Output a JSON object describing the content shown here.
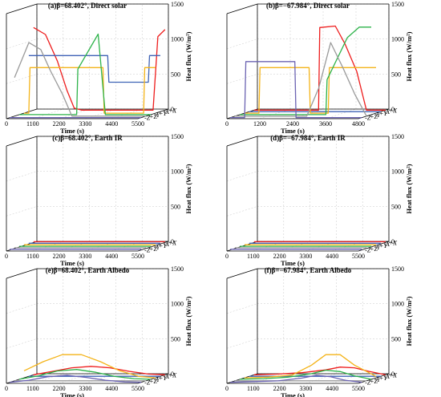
{
  "chart_data": [
    {
      "type": "line",
      "panel": "a",
      "title": "(a)β=68.402°, Direct solar",
      "xlabel": "Time (s)",
      "zlabel": "Heat flux (W/m²)",
      "xticks": [
        "0",
        "1100",
        "2200",
        "3300",
        "4400",
        "5500"
      ],
      "zticks": [
        "0",
        "500",
        "1000",
        "1500"
      ],
      "faces": [
        "+X",
        "-X",
        "+Y",
        "-Y",
        "+Z",
        "-Z"
      ],
      "xlim": [
        0,
        5500
      ],
      "zlim": [
        0,
        1500
      ],
      "series": [
        {
          "face": "+X",
          "color": "#ee1c1c",
          "x": [
            0,
            500,
            1000,
            1400,
            1700,
            2000,
            5000,
            5200,
            5500
          ],
          "y": [
            1180,
            1080,
            700,
            280,
            30,
            0,
            0,
            1050,
            1150
          ]
        },
        {
          "face": "-X",
          "color": "#3f63b6",
          "x": [
            0,
            3300,
            3350,
            5000,
            5050,
            5500
          ],
          "y": [
            800,
            800,
            420,
            420,
            800,
            800
          ]
        },
        {
          "face": "+Y",
          "color": "#f4b41a",
          "x": [
            0,
            200,
            250,
            3300,
            3350,
            5000,
            5050,
            5500
          ],
          "y": [
            0,
            0,
            650,
            650,
            0,
            0,
            650,
            650
          ]
        },
        {
          "face": "-Y",
          "color": "#2db34a",
          "x": [
            0,
            2400,
            2450,
            3300,
            3600,
            3650,
            5500
          ],
          "y": [
            0,
            0,
            650,
            1150,
            0,
            0,
            0
          ]
        },
        {
          "face": "+Z",
          "color": "#9a9a9a",
          "x": [
            0,
            600,
            1100,
            1500,
            2000,
            2400,
            5500
          ],
          "y": [
            550,
            1050,
            950,
            650,
            320,
            0,
            0
          ]
        },
        {
          "face": "-Z",
          "color": "#6b63b2",
          "x": [
            0,
            5500
          ],
          "y": [
            0,
            0
          ]
        }
      ]
    },
    {
      "type": "line",
      "panel": "b",
      "title": "(b)β=−67.984°, Direct solar",
      "xlabel": "Time (s)",
      "zlabel": "Heat flux (W/m²)",
      "xticks": [
        "0",
        "1200",
        "2400",
        "3600",
        "4800"
      ],
      "zticks": [
        "0",
        "500",
        "1000",
        "1500"
      ],
      "faces": [
        "+X",
        "-X",
        "+Y",
        "-Y",
        "+Z",
        "-Z"
      ],
      "xlim": [
        0,
        5500
      ],
      "zlim": [
        0,
        1500
      ],
      "series": [
        {
          "face": "+X",
          "color": "#ee1c1c",
          "x": [
            0,
            2700,
            2750,
            3400,
            3800,
            4300,
            4700,
            5500
          ],
          "y": [
            0,
            0,
            1180,
            1200,
            950,
            550,
            0,
            0
          ]
        },
        {
          "face": "-X",
          "color": "#3f63b6",
          "x": [
            0,
            5500
          ],
          "y": [
            0,
            0
          ]
        },
        {
          "face": "+Y",
          "color": "#f4b41a",
          "x": [
            0,
            600,
            650,
            2700,
            2750,
            3500,
            3550,
            5500
          ],
          "y": [
            0,
            0,
            650,
            650,
            0,
            0,
            650,
            650
          ]
        },
        {
          "face": "-Y",
          "color": "#2db34a",
          "x": [
            0,
            3600,
            3650,
            4500,
            5000,
            5500
          ],
          "y": [
            0,
            0,
            500,
            1100,
            1250,
            1250
          ]
        },
        {
          "face": "+Z",
          "color": "#9a9a9a",
          "x": [
            0,
            3000,
            3500,
            4000,
            4500,
            5000,
            5500
          ],
          "y": [
            0,
            0,
            400,
            1050,
            700,
            320,
            0
          ]
        },
        {
          "face": "-Z",
          "color": "#6b63b2",
          "x": [
            0,
            600,
            650,
            2700,
            2750,
            5500
          ],
          "y": [
            0,
            0,
            800,
            800,
            0,
            0
          ]
        }
      ]
    },
    {
      "type": "line",
      "panel": "c",
      "title": "(c)β=68.402°, Earth IR",
      "xlabel": "Time (s)",
      "zlabel": "Heat flux (W/m²)",
      "xticks": [
        "0",
        "1100",
        "2200",
        "3300",
        "4400",
        "5500"
      ],
      "zticks": [
        "0",
        "500",
        "1000",
        "1500"
      ],
      "faces": [
        "+X",
        "-X",
        "+Y",
        "-Y",
        "+Z",
        "-Z"
      ],
      "xlim": [
        0,
        5500
      ],
      "zlim": [
        0,
        1500
      ],
      "series": [
        {
          "face": "+X",
          "color": "#ee1c1c",
          "x": [
            0,
            5500
          ],
          "y": [
            10,
            10
          ]
        },
        {
          "face": "-X",
          "color": "#3f63b6",
          "x": [
            0,
            5500
          ],
          "y": [
            10,
            10
          ]
        },
        {
          "face": "+Y",
          "color": "#f4b41a",
          "x": [
            0,
            5500
          ],
          "y": [
            10,
            10
          ]
        },
        {
          "face": "-Y",
          "color": "#2db34a",
          "x": [
            0,
            5500
          ],
          "y": [
            10,
            10
          ]
        },
        {
          "face": "+Z",
          "color": "#9a9a9a",
          "x": [
            0,
            5500
          ],
          "y": [
            10,
            10
          ]
        },
        {
          "face": "-Z",
          "color": "#6b63b2",
          "x": [
            0,
            5500
          ],
          "y": [
            10,
            10
          ]
        }
      ]
    },
    {
      "type": "line",
      "panel": "d",
      "title": "(d)β=−67.984°, Earth IR",
      "xlabel": "Time (s)",
      "zlabel": "Heat flux (W/m²)",
      "xticks": [
        "0",
        "1100",
        "2200",
        "3300",
        "4400",
        "5500"
      ],
      "zticks": [
        "0",
        "500",
        "1000",
        "1500"
      ],
      "faces": [
        "+X",
        "-X",
        "+Y",
        "-Y",
        "+Z",
        "-Z"
      ],
      "xlim": [
        0,
        5500
      ],
      "zlim": [
        0,
        1500
      ],
      "series": [
        {
          "face": "+X",
          "color": "#ee1c1c",
          "x": [
            0,
            5500
          ],
          "y": [
            10,
            10
          ]
        },
        {
          "face": "-X",
          "color": "#3f63b6",
          "x": [
            0,
            5500
          ],
          "y": [
            10,
            10
          ]
        },
        {
          "face": "+Y",
          "color": "#f4b41a",
          "x": [
            0,
            5500
          ],
          "y": [
            10,
            10
          ]
        },
        {
          "face": "-Y",
          "color": "#2db34a",
          "x": [
            0,
            5500
          ],
          "y": [
            10,
            10
          ]
        },
        {
          "face": "+Z",
          "color": "#9a9a9a",
          "x": [
            0,
            5500
          ],
          "y": [
            10,
            10
          ]
        },
        {
          "face": "-Z",
          "color": "#6b63b2",
          "x": [
            0,
            5500
          ],
          "y": [
            10,
            10
          ]
        }
      ]
    },
    {
      "type": "line",
      "panel": "e",
      "title": "(e)β=68.402°, Earth Albedo",
      "xlabel": "Time (s)",
      "zlabel": "Heat flux (W/m²)",
      "xticks": [
        "0",
        "1100",
        "2200",
        "3300",
        "4400",
        "5500"
      ],
      "zticks": [
        "0",
        "500",
        "1000",
        "1500"
      ],
      "faces": [
        "+X",
        "-X",
        "+Y",
        "-Y",
        "+Z",
        "-Z"
      ],
      "xlim": [
        0,
        5500
      ],
      "zlim": [
        0,
        1500
      ],
      "series": [
        {
          "face": "+X",
          "color": "#ee1c1c",
          "x": [
            0,
            800,
            1600,
            2400,
            3200,
            4000,
            4800,
            5500
          ],
          "y": [
            0,
            50,
            100,
            120,
            100,
            50,
            10,
            0
          ]
        },
        {
          "face": "-X",
          "color": "#3f63b6",
          "x": [
            0,
            5500
          ],
          "y": [
            0,
            0
          ]
        },
        {
          "face": "+Y",
          "color": "#f4b41a",
          "x": [
            0,
            800,
            1600,
            2400,
            3200,
            4000,
            4800,
            5500
          ],
          "y": [
            100,
            230,
            330,
            330,
            230,
            100,
            20,
            0
          ]
        },
        {
          "face": "-Y",
          "color": "#2db34a",
          "x": [
            0,
            800,
            1600,
            2400,
            3200,
            4000,
            4800,
            5500
          ],
          "y": [
            0,
            50,
            120,
            140,
            100,
            40,
            10,
            0
          ]
        },
        {
          "face": "+Z",
          "color": "#9a9a9a",
          "x": [
            0,
            5500
          ],
          "y": [
            0,
            0
          ]
        },
        {
          "face": "-Z",
          "color": "#6b63b2",
          "x": [
            0,
            800,
            1600,
            2400,
            3200,
            4000,
            4800,
            5500
          ],
          "y": [
            0,
            30,
            80,
            100,
            70,
            30,
            5,
            0
          ]
        }
      ]
    },
    {
      "type": "line",
      "panel": "f",
      "title": "(f)β=−67.984°, Earth Albedo",
      "xlabel": "Time (s)",
      "zlabel": "Heat flux (W/m²)",
      "xticks": [
        "0",
        "1100",
        "2200",
        "3300",
        "4400",
        "5500"
      ],
      "zticks": [
        "0",
        "500",
        "1000",
        "1500"
      ],
      "faces": [
        "+X",
        "-X",
        "+Y",
        "-Y",
        "+Z",
        "-Z"
      ],
      "xlim": [
        0,
        5500
      ],
      "zlim": [
        0,
        1500
      ],
      "series": [
        {
          "face": "+X",
          "color": "#ee1c1c",
          "x": [
            0,
            1000,
            2000,
            3000,
            3600,
            4200,
            4800,
            5500
          ],
          "y": [
            0,
            10,
            30,
            70,
            110,
            100,
            50,
            0
          ]
        },
        {
          "face": "-X",
          "color": "#3f63b6",
          "x": [
            0,
            5500
          ],
          "y": [
            0,
            0
          ]
        },
        {
          "face": "+Y",
          "color": "#f4b41a",
          "x": [
            0,
            1000,
            2000,
            2800,
            3400,
            4000,
            4600,
            5500
          ],
          "y": [
            0,
            10,
            40,
            180,
            330,
            330,
            180,
            20
          ]
        },
        {
          "face": "-Y",
          "color": "#2db34a",
          "x": [
            0,
            1000,
            2000,
            3000,
            3600,
            4200,
            4800,
            5500
          ],
          "y": [
            0,
            10,
            30,
            80,
            130,
            110,
            50,
            0
          ]
        },
        {
          "face": "+Z",
          "color": "#9a9a9a",
          "x": [
            0,
            5500
          ],
          "y": [
            0,
            0
          ]
        },
        {
          "face": "-Z",
          "color": "#6b63b2",
          "x": [
            0,
            1000,
            2000,
            3000,
            3600,
            4200,
            4800,
            5500
          ],
          "y": [
            0,
            10,
            20,
            60,
            100,
            80,
            30,
            0
          ]
        }
      ]
    }
  ]
}
